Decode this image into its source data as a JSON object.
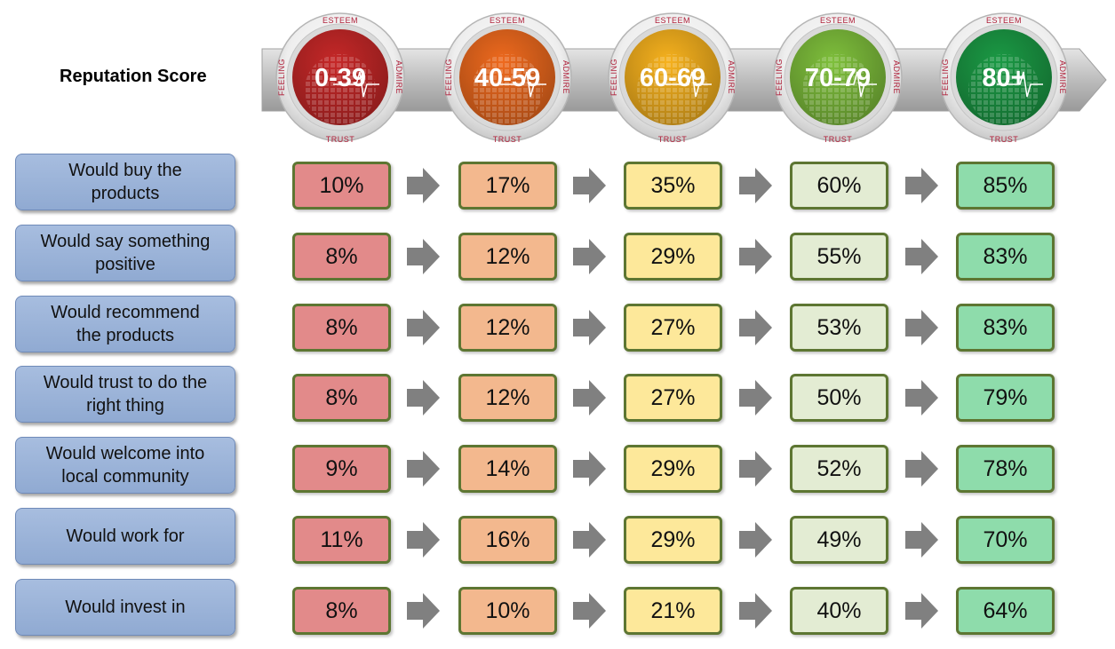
{
  "title": "Reputation Score",
  "ring_labels": {
    "top": "ESTEEM",
    "bottom": "TRUST",
    "left": "FEELING",
    "right": "ADMIRE"
  },
  "chart_data": {
    "type": "table",
    "title": "Reputation Score",
    "columns": [
      {
        "label": "0-39",
        "color": "#c62828",
        "cell_color": "#e28a8a"
      },
      {
        "label": "40-59",
        "color": "#ef6a1e",
        "cell_color": "#f3b88e"
      },
      {
        "label": "60-69",
        "color": "#f7b21e",
        "cell_color": "#fde89a"
      },
      {
        "label": "70-79",
        "color": "#7fc03c",
        "cell_color": "#e3ecd3"
      },
      {
        "label": "80+",
        "color": "#1b9a45",
        "cell_color": "#8edcab"
      }
    ],
    "rows": [
      {
        "label": "Would buy the\nproducts",
        "values": [
          "10%",
          "17%",
          "35%",
          "60%",
          "85%"
        ]
      },
      {
        "label": "Would say something\npositive",
        "values": [
          "8%",
          "12%",
          "29%",
          "55%",
          "83%"
        ]
      },
      {
        "label": "Would recommend\nthe products",
        "values": [
          "8%",
          "12%",
          "27%",
          "53%",
          "83%"
        ]
      },
      {
        "label": "Would trust to do the\nright thing",
        "values": [
          "8%",
          "12%",
          "27%",
          "50%",
          "79%"
        ]
      },
      {
        "label": "Would welcome into\nlocal community",
        "values": [
          "9%",
          "14%",
          "29%",
          "52%",
          "78%"
        ]
      },
      {
        "label": "Would work for",
        "values": [
          "11%",
          "16%",
          "29%",
          "49%",
          "70%"
        ]
      },
      {
        "label": "Would invest in",
        "values": [
          "8%",
          "10%",
          "21%",
          "40%",
          "64%"
        ]
      }
    ]
  }
}
